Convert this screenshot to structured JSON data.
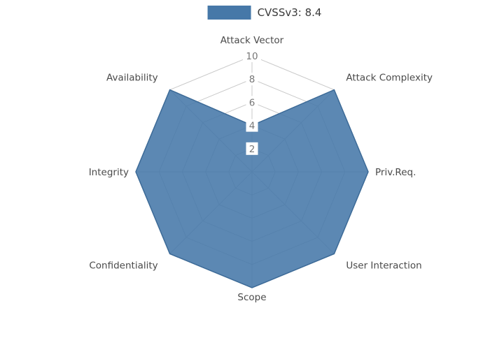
{
  "chart_data": {
    "type": "radar",
    "legend_label": "CVSSv3: 8.4",
    "categories": [
      "Attack Vector",
      "Attack Complexity",
      "Priv.Req.",
      "User Interaction",
      "Scope",
      "Confidentiality",
      "Integrity",
      "Availability"
    ],
    "values": [
      4,
      10,
      10,
      10,
      10,
      10,
      10,
      10
    ],
    "ticks": [
      2,
      4,
      6,
      8,
      10
    ],
    "range": [
      0,
      10
    ],
    "grid": true,
    "legend_position": "top",
    "colors": {
      "fill": "#4678A8",
      "stroke": "#3C6A97",
      "grid": "#C9C9C9",
      "tick_text": "#777777",
      "label_text": "#4A4A4A",
      "background": "#FFFFFF"
    }
  }
}
